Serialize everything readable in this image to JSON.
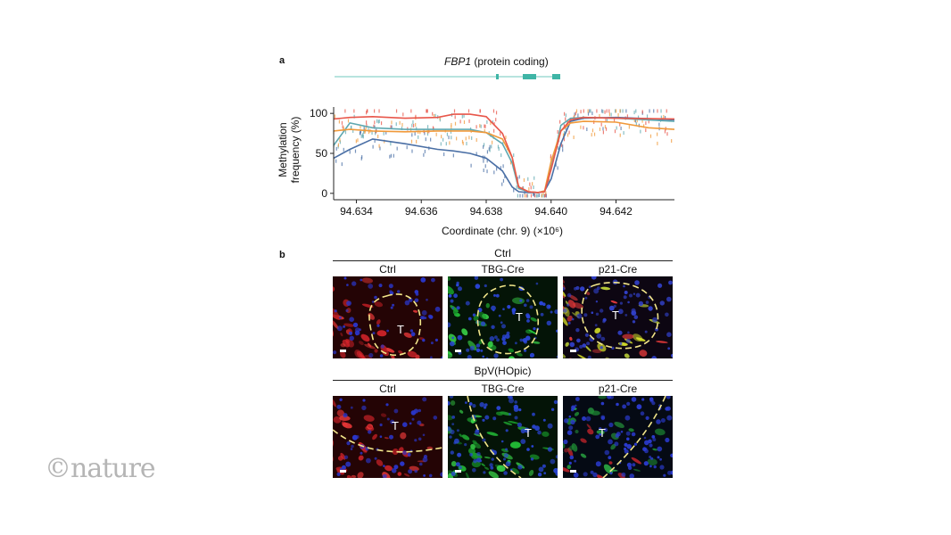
{
  "panel_a": {
    "label": "a",
    "gene_name": "FBP1",
    "gene_desc": " (protein coding)"
  },
  "panel_b": {
    "label": "b",
    "group1_title": "Ctrl",
    "group2_title": "BpV(HOpic)",
    "columns": [
      "Ctrl",
      "TBG-Cre",
      "p21-Cre"
    ],
    "tumour_marker": "T"
  },
  "watermark": "©nature",
  "colors": {
    "blue": "#4a6fa5",
    "teal": "#5fa8b0",
    "orange": "#f0993a",
    "red": "#e8564a",
    "gene": "#3fb5a6"
  },
  "chart_data": {
    "type": "line",
    "ylabel_line1": "Methylation",
    "ylabel_line2": "frequency (%)",
    "xlabel": "Coordinate (chr. 9) (×10⁶)",
    "xlim": [
      94.6333,
      94.6438
    ],
    "ylim": [
      -8,
      108
    ],
    "xticks": [
      94.634,
      94.636,
      94.638,
      94.64,
      94.642
    ],
    "xtick_labels": [
      "94.634",
      "94.636",
      "94.638",
      "94.640",
      "94.642"
    ],
    "yticks": [
      0,
      50,
      100
    ],
    "ytick_labels": [
      "0",
      "50",
      "100"
    ],
    "series": [
      {
        "color": "#4a6fa5",
        "x": [
          94.6333,
          94.6338,
          94.6345,
          94.6355,
          94.6365,
          94.637,
          94.6375,
          94.638,
          94.6385,
          94.6388,
          94.639,
          94.6393,
          94.6396,
          94.6398,
          94.64,
          94.6403,
          94.6406,
          94.641,
          94.642,
          94.6438
        ],
        "values": [
          44,
          55,
          68,
          62,
          55,
          53,
          50,
          44,
          28,
          8,
          2,
          1,
          1,
          3,
          18,
          62,
          90,
          94,
          95,
          92
        ]
      },
      {
        "color": "#5fa8b0",
        "x": [
          94.6333,
          94.6338,
          94.6345,
          94.6355,
          94.6365,
          94.6375,
          94.638,
          94.6385,
          94.6388,
          94.639,
          94.6393,
          94.6396,
          94.6398,
          94.6401,
          94.6403,
          94.6406,
          94.641,
          94.642,
          94.6438
        ],
        "values": [
          60,
          88,
          82,
          80,
          80,
          80,
          76,
          62,
          38,
          6,
          2,
          1,
          2,
          48,
          85,
          94,
          95,
          94,
          90
        ]
      },
      {
        "color": "#f0993a",
        "x": [
          94.6333,
          94.6338,
          94.6345,
          94.6355,
          94.6365,
          94.6375,
          94.638,
          94.6385,
          94.6388,
          94.639,
          94.6393,
          94.6396,
          94.6398,
          94.64,
          94.6403,
          94.6406,
          94.641,
          94.642,
          94.643,
          94.6438
        ],
        "values": [
          78,
          80,
          78,
          77,
          78,
          78,
          76,
          68,
          45,
          8,
          2,
          1,
          3,
          40,
          78,
          88,
          90,
          89,
          82,
          80
        ]
      },
      {
        "color": "#e8564a",
        "x": [
          94.6333,
          94.6338,
          94.6345,
          94.6355,
          94.6365,
          94.637,
          94.6375,
          94.638,
          94.6385,
          94.6388,
          94.639,
          94.6393,
          94.6396,
          94.6398,
          94.64,
          94.6403,
          94.6406,
          94.641,
          94.642,
          94.6438
        ],
        "values": [
          93,
          95,
          96,
          94,
          95,
          99,
          99,
          96,
          75,
          45,
          8,
          2,
          1,
          2,
          30,
          78,
          92,
          95,
          94,
          93
        ]
      }
    ]
  }
}
